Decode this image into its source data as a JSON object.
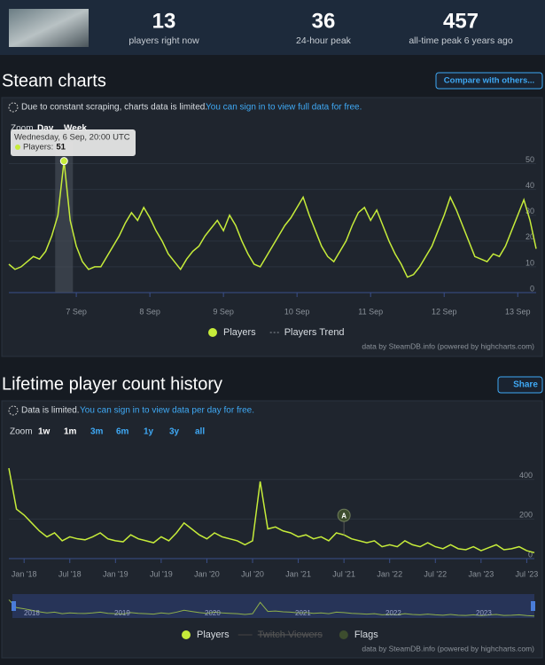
{
  "header": {
    "stats": [
      {
        "value": 13,
        "label": "players right now"
      },
      {
        "value": 36,
        "label": "24-hour peak"
      },
      {
        "value": 457,
        "label": "all-time peak 6 years ago"
      }
    ]
  },
  "steam_charts": {
    "title": "Steam charts",
    "button": "Compare with others...",
    "notice": "Due to constant scraping, charts data is limited.",
    "notice_link": "You can sign in to view full data for free.",
    "zoom": [
      "Zoom",
      "Day",
      "Week"
    ],
    "tooltip": {
      "date": "Wednesday, 6 Sep, 20:00 UTC",
      "label": "Players:",
      "value": 51,
      "at": 9
    },
    "credit": "data by SteamDB.info (powered by highcharts.com)"
  },
  "lifetime": {
    "title": "Lifetime player count history",
    "button": "Share",
    "notice": "Data is limited.",
    "notice_link": "You can sign in to view data per day for free.",
    "zoom": [
      "Zoom",
      "1w",
      "1m",
      "3m",
      "6m",
      "1y",
      "3y",
      "all"
    ],
    "navigator_labels": [
      "2018",
      "2019",
      "2020",
      "2021",
      "2022",
      "2023"
    ],
    "credit": "data by SteamDB.info (powered by highcharts.com)"
  },
  "chart_data": [
    {
      "type": "line",
      "series": [
        {
          "name": "Players",
          "color": "#c6ec3a",
          "values": [
            11,
            9,
            10,
            12,
            14,
            13,
            16,
            22,
            30,
            51,
            28,
            18,
            12,
            9,
            10,
            10,
            14,
            18,
            22,
            27,
            31,
            28,
            33,
            29,
            24,
            20,
            15,
            12,
            9,
            13,
            16,
            18,
            22,
            25,
            28,
            24,
            30,
            26,
            20,
            15,
            11,
            10,
            14,
            18,
            22,
            26,
            29,
            33,
            37,
            30,
            24,
            18,
            14,
            12,
            16,
            20,
            26,
            31,
            33,
            28,
            32,
            26,
            20,
            15,
            11,
            6,
            7,
            10,
            14,
            18,
            24,
            30,
            37,
            32,
            26,
            20,
            14,
            13,
            12,
            15,
            14,
            18,
            24,
            30,
            36,
            28,
            17
          ]
        }
      ],
      "extra_legend": [
        {
          "name": "Players Trend",
          "style": "dashed"
        }
      ],
      "xlim": [
        0,
        86
      ],
      "xticks": [
        {
          "value": 11,
          "label": "7 Sep"
        },
        {
          "value": 23,
          "label": "8 Sep"
        },
        {
          "value": 35,
          "label": "9 Sep"
        },
        {
          "value": 47,
          "label": "10 Sep"
        },
        {
          "value": 59,
          "label": "11 Sep"
        },
        {
          "value": 71,
          "label": "12 Sep"
        },
        {
          "value": 83,
          "label": "13 Sep"
        }
      ],
      "ylim": [
        0,
        55
      ],
      "yticks": [
        0,
        10,
        20,
        30,
        40,
        50
      ],
      "grid": true
    },
    {
      "type": "line",
      "series": [
        {
          "name": "Players",
          "color": "#c6ec3a",
          "values": [
            457,
            250,
            220,
            180,
            140,
            110,
            130,
            90,
            110,
            100,
            95,
            110,
            130,
            100,
            90,
            85,
            120,
            100,
            90,
            80,
            110,
            90,
            130,
            180,
            150,
            120,
            100,
            130,
            110,
            100,
            90,
            70,
            90,
            390,
            150,
            160,
            140,
            130,
            110,
            120,
            100,
            110,
            90,
            130,
            120,
            100,
            90,
            80,
            90,
            60,
            70,
            60,
            90,
            70,
            60,
            80,
            60,
            50,
            70,
            50,
            45,
            60,
            40,
            55,
            70,
            45,
            50,
            60,
            40,
            30
          ]
        }
      ],
      "extra_legend": [
        {
          "name": "Twitch Viewers",
          "style": "hidden"
        },
        {
          "name": "Flags",
          "style": "flag"
        }
      ],
      "flags": [
        {
          "text": "A",
          "at": 44
        }
      ],
      "xlim": [
        0,
        69
      ],
      "xticks": [
        {
          "value": 2,
          "label": "Jan '18"
        },
        {
          "value": 8,
          "label": "Jul '18"
        },
        {
          "value": 14,
          "label": "Jan '19"
        },
        {
          "value": 20,
          "label": "Jul '19"
        },
        {
          "value": 26,
          "label": "Jan '20"
        },
        {
          "value": 32,
          "label": "Jul '20"
        },
        {
          "value": 38,
          "label": "Jan '21"
        },
        {
          "value": 44,
          "label": "Jul '21"
        },
        {
          "value": 50,
          "label": "Jan '22"
        },
        {
          "value": 56,
          "label": "Jul '22"
        },
        {
          "value": 62,
          "label": "Jan '23"
        },
        {
          "value": 68,
          "label": "Jul '23"
        }
      ],
      "ylim": [
        0,
        560
      ],
      "yticks": [
        0,
        200,
        400
      ],
      "grid": true
    }
  ]
}
